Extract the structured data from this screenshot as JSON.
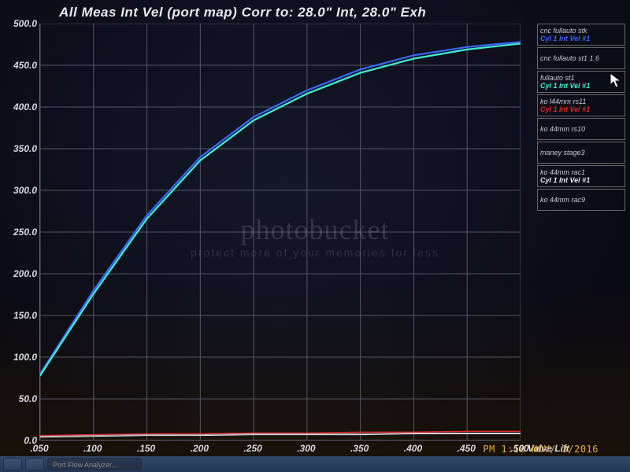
{
  "title": "All Meas Int Vel (port map)   Corr to: 28.0\" Int, 28.0\" Exh",
  "chart": {
    "type": "line",
    "background_color": "#0a0a14",
    "grid_color": "#565664",
    "title_fontsize": 17,
    "title_color": "#e8e8f0",
    "label_fontsize": 12,
    "label_color": "#d8d8e0",
    "xaxis": {
      "title": "Valve Lift",
      "min": 0.05,
      "max": 0.5,
      "tick_step": 0.05,
      "ticks": [
        ".050",
        ".100",
        ".150",
        ".200",
        ".250",
        ".300",
        ".350",
        ".400",
        ".450",
        ".500"
      ]
    },
    "yaxis": {
      "min": 0.0,
      "max": 500.0,
      "tick_step": 50.0,
      "ticks": [
        "0.0",
        "50.0",
        "100.0",
        "150.0",
        "200.0",
        "250.0",
        "300.0",
        "350.0",
        "400.0",
        "450.0",
        "500.0"
      ]
    },
    "series": [
      {
        "name": "cnc fullauto stk — Cyl 1 Int Vel #1",
        "color": "#3868ff",
        "line_width": 2.2,
        "x": [
          0.05,
          0.1,
          0.15,
          0.2,
          0.25,
          0.3,
          0.35,
          0.4,
          0.45,
          0.5
        ],
        "y": [
          80,
          180,
          270,
          340,
          388,
          420,
          445,
          462,
          472,
          478
        ]
      },
      {
        "name": "fullauto st1 — Cyl 1 Int Vel #1",
        "color": "#40f0d0",
        "line_width": 2.2,
        "x": [
          0.05,
          0.1,
          0.15,
          0.2,
          0.25,
          0.3,
          0.35,
          0.4,
          0.45,
          0.5
        ],
        "y": [
          78,
          176,
          266,
          336,
          384,
          416,
          441,
          458,
          469,
          476
        ]
      },
      {
        "name": "ko l44mm rs11 — Cyl 1 Int Vel #1",
        "color": "#e02828",
        "line_width": 1.5,
        "x": [
          0.05,
          0.1,
          0.15,
          0.2,
          0.25,
          0.3,
          0.35,
          0.4,
          0.45,
          0.5
        ],
        "y": [
          6,
          7,
          8,
          8,
          9,
          9,
          10,
          10,
          11,
          11
        ]
      },
      {
        "name": "ko 44mm rs10",
        "color": "#b8b8c0",
        "line_width": 1,
        "x": [
          0.05,
          0.1,
          0.15,
          0.2,
          0.25,
          0.3,
          0.35,
          0.4,
          0.45,
          0.5
        ],
        "y": [
          5,
          6,
          7,
          7,
          8,
          8,
          8,
          9,
          9,
          9
        ]
      },
      {
        "name": "ko 44mm rac1 — Cyl 1 Int Vel #1",
        "color": "#e8e8f0",
        "line_width": 1,
        "x": [
          0.05,
          0.1,
          0.15,
          0.2,
          0.25,
          0.3,
          0.35,
          0.4,
          0.45,
          0.5
        ],
        "y": [
          4,
          5,
          6,
          6,
          7,
          7,
          7,
          8,
          8,
          8
        ]
      }
    ]
  },
  "legend": {
    "border_color": "#666",
    "items": [
      {
        "label": "cnc fullauto stk",
        "sub": "Cyl 1 Int Vel #1",
        "sub_color": "#3868ff"
      },
      {
        "label": "cnc fullauto st1 1.6",
        "sub": "",
        "sub_color": "#e8e8f0"
      },
      {
        "label": "fullauto st1",
        "sub": "Cyl 1 Int Vel #1",
        "sub_color": "#40f0d0"
      },
      {
        "label": "ko l44mm rs11",
        "sub": "Cyl 1 Int Vel #1",
        "sub_color": "#e02828"
      },
      {
        "label": "ko 44mm rs10",
        "sub": "",
        "sub_color": "#e8e8f0"
      },
      {
        "label": "maney stage3",
        "sub": "",
        "sub_color": "#e8e8f0"
      },
      {
        "label": "ko 44mm rac1",
        "sub": "Cyl 1 Int Vel #1",
        "sub_color": "#e8e8f0"
      },
      {
        "label": "ko 44mm rac9",
        "sub": "",
        "sub_color": "#e8e8f0"
      }
    ]
  },
  "watermark": {
    "logo": "photobucket",
    "sub": "protect more of your memories for less"
  },
  "timestamp": "PM 1:18 NOV/ 3/2016",
  "taskbar": {
    "items": [
      "",
      "",
      "Port Flow Analyzer..."
    ]
  }
}
